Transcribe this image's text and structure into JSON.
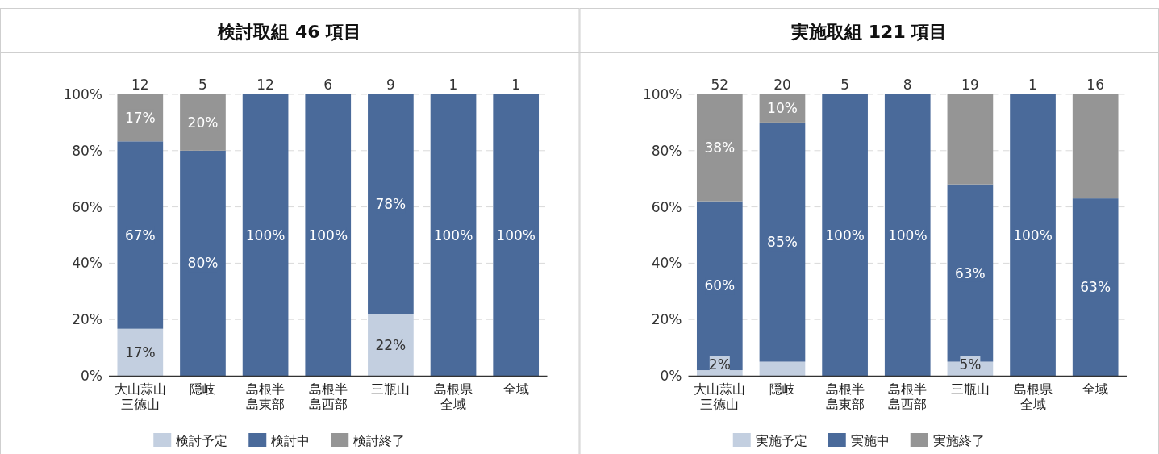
{
  "chart_data": [
    {
      "type": "bar",
      "stacked": true,
      "title": "検討取組 46 項目",
      "categories": [
        "大山蒜山三徳山",
        "隠岐",
        "島根半島東部",
        "島根半島西部",
        "三瓶山",
        "島根県全域",
        "全域"
      ],
      "series": [
        {
          "name": "検討予定",
          "color": "#c3cfe0",
          "values": [
            16.7,
            0,
            0,
            0,
            22,
            0,
            0
          ],
          "value_labels": [
            "17%",
            null,
            null,
            null,
            "22%",
            null,
            null
          ]
        },
        {
          "name": "検討中",
          "color": "#4a6a9a",
          "values": [
            66.6,
            80,
            100,
            100,
            78,
            100,
            100
          ],
          "value_labels": [
            "67%",
            "80%",
            "100%",
            "100%",
            "78%",
            "100%",
            "100%"
          ]
        },
        {
          "name": "検討終了",
          "color": "#959595",
          "values": [
            16.7,
            20,
            0,
            0,
            0,
            0,
            0
          ],
          "value_labels": [
            "17%",
            "20%",
            null,
            null,
            null,
            null,
            null
          ]
        }
      ],
      "annotations": [
        {
          "text": "12",
          "x": "大山蒜山三徳山",
          "y": 100
        },
        {
          "text": "5",
          "x": "隠岐",
          "y": 100
        },
        {
          "text": "12",
          "x": "島根半島東部",
          "y": 100
        },
        {
          "text": "6",
          "x": "島根半島西部",
          "y": 100
        },
        {
          "text": "9",
          "x": "三瓶山",
          "y": 100
        },
        {
          "text": "1",
          "x": "島根県全域",
          "y": 100
        },
        {
          "text": "1",
          "x": "全域",
          "y": 100
        }
      ],
      "ylim": [
        0,
        100
      ],
      "yticks": [
        {
          "value": 0,
          "label": "0%"
        },
        {
          "value": 20,
          "label": "20%"
        },
        {
          "value": 40,
          "label": "40%"
        },
        {
          "value": 60,
          "label": "60%"
        },
        {
          "value": 80,
          "label": "80%"
        },
        {
          "value": 100,
          "label": "100%"
        }
      ],
      "grid": "y",
      "legend": "bottom"
    },
    {
      "type": "bar",
      "stacked": true,
      "title": "実施取組 121 項目",
      "categories": [
        "大山蒜山三徳山",
        "隠岐",
        "島根半島東部",
        "島根半島西部",
        "三瓶山",
        "島根県全域",
        "全域"
      ],
      "series": [
        {
          "name": "実施予定",
          "color": "#c3cfe0",
          "values": [
            2,
            5,
            0,
            0,
            5,
            0,
            0
          ],
          "value_labels": [
            "2%",
            null,
            null,
            null,
            "5%",
            null,
            null
          ]
        },
        {
          "name": "実施中",
          "color": "#4a6a9a",
          "values": [
            60,
            85,
            100,
            100,
            63,
            100,
            63
          ],
          "value_labels": [
            "60%",
            "85%",
            "100%",
            "100%",
            "63%",
            "100%",
            "63%"
          ]
        },
        {
          "name": "実施終了",
          "color": "#959595",
          "values": [
            38,
            10,
            0,
            0,
            32,
            0,
            37
          ],
          "value_labels": [
            "38%",
            "10%",
            null,
            null,
            null,
            null,
            null
          ]
        }
      ],
      "annotations": [
        {
          "text": "52",
          "x": "大山蒜山三徳山",
          "y": 100
        },
        {
          "text": "20",
          "x": "隠岐",
          "y": 100
        },
        {
          "text": "5",
          "x": "島根半島東部",
          "y": 100
        },
        {
          "text": "8",
          "x": "島根半島西部",
          "y": 100
        },
        {
          "text": "19",
          "x": "三瓶山",
          "y": 100
        },
        {
          "text": "1",
          "x": "島根県全域",
          "y": 100
        },
        {
          "text": "16",
          "x": "全域",
          "y": 100
        }
      ],
      "ylim": [
        0,
        100
      ],
      "yticks": [
        {
          "value": 0,
          "label": "0%"
        },
        {
          "value": 20,
          "label": "20%"
        },
        {
          "value": 40,
          "label": "40%"
        },
        {
          "value": 60,
          "label": "60%"
        },
        {
          "value": 80,
          "label": "80%"
        },
        {
          "value": 100,
          "label": "100%"
        }
      ],
      "grid": "y",
      "legend": "bottom"
    }
  ]
}
